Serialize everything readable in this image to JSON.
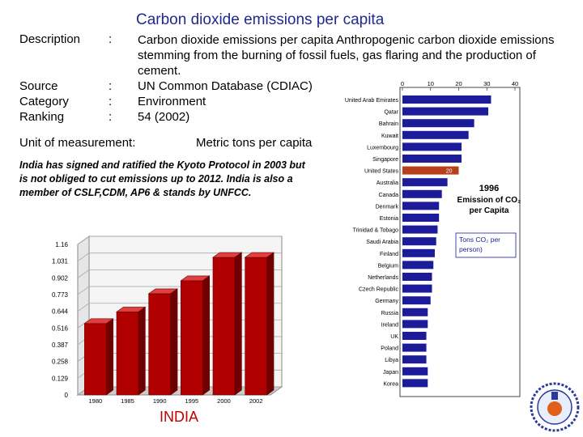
{
  "title": "Carbon dioxide emissions per capita",
  "fields": {
    "description_label": "Description",
    "description_text": "Carbon dioxide emissions per capita Anthropogenic carbon dioxide emissions stemming from the burning of fossil fuels, gas flaring and the production of cement.",
    "source_label": "Source",
    "source_value": "UN Common Database (CDIAC)",
    "category_label": "Category",
    "category_value": "Environment",
    "ranking_label": "Ranking",
    "ranking_value": "54 (2002)",
    "colon": ":"
  },
  "unit": {
    "label": "Unit of measurement:",
    "value": "Metric tons per capita"
  },
  "note": "India has signed and ratified the Kyoto Protocol in 2003 but is not obliged to cut emissions up to 2012. India is also a member of CSLF,CDM, AP6 & stands by UNFCC.",
  "colors": {
    "title": "#1f2a8c",
    "india_bars": "#c00000",
    "world_bars": "#1c1c9a",
    "us_bar": "#b5401b",
    "india_label": "#c00000"
  },
  "chart_data": [
    {
      "type": "bar",
      "title": "",
      "categories": [
        "1980",
        "1985",
        "1990",
        "1995",
        "2000",
        "2002"
      ],
      "values": [
        0.55,
        0.64,
        0.78,
        0.88,
        1.06,
        1.06
      ],
      "ylim": [
        0,
        1.16
      ],
      "yticks": [
        "0",
        "0.129",
        "0.258",
        "0.387",
        "0.516",
        "0.644",
        "0.773",
        "0.902",
        "1.031",
        "1.16"
      ],
      "grid": true,
      "style": "3d",
      "caption": "INDIA"
    },
    {
      "type": "bar",
      "orientation": "horizontal",
      "title": "1996 Emission of CO₂ per Capita",
      "title_lines": [
        "1996",
        "Emission of CO₂",
        "per Capita"
      ],
      "xlim": [
        0,
        40
      ],
      "xticks": [
        "0",
        "10",
        "20",
        "30",
        "40"
      ],
      "categories": [
        "United Arab Emirates",
        "Qatar",
        "Bahrain",
        "Kuwait",
        "Luxembourg",
        "Singapore",
        "United States",
        "Australia",
        "Canada",
        "Denmark",
        "Estonia",
        "Trinidad & Tobago",
        "Saudi Arabia",
        "Finland",
        "Belgium",
        "Netherlands",
        "Czech Republic",
        "Germany",
        "Russia",
        "Ireland",
        "UK",
        "Poland",
        "Libya",
        "Japan",
        "Korea"
      ],
      "values": [
        31.5,
        30.5,
        25.5,
        23.5,
        21,
        21,
        20,
        16,
        14,
        13,
        13,
        12.5,
        12,
        11.5,
        11,
        10.5,
        10.5,
        10,
        9,
        9,
        8.5,
        8.5,
        8.5,
        9,
        9
      ],
      "highlight": {
        "category": "United States",
        "label": "20"
      },
      "annotation": "Tons CO₂ per person)"
    }
  ]
}
